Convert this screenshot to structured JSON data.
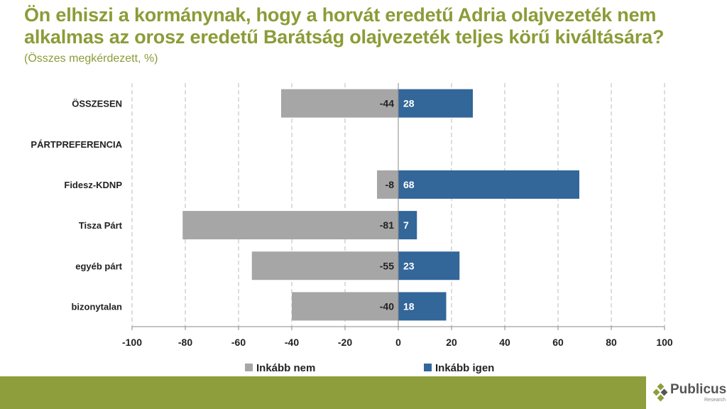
{
  "title": "Ön elhiszi a kormánynak, hogy a horvát eredetű Adria olajvezeték nem alkalmas az orosz eredetű Barátság olajvezeték teljes körű kiváltására?",
  "subtitle": "(Összes megkérdezett, %)",
  "logo": {
    "name": "Publicus",
    "sub": "Research"
  },
  "colors": {
    "nem": "#a6a6a6",
    "igen": "#336699",
    "accent": "#8e9e3c"
  },
  "chart_data": {
    "type": "bar",
    "orientation": "horizontal-diverging",
    "categories": [
      "ÖSSZESEN",
      "PÁRTPREFERENCIA",
      "Fidesz-KDNP",
      "Tisza Párt",
      "egyéb párt",
      "bizonytalan"
    ],
    "series": [
      {
        "name": "Inkább nem",
        "values": [
          -44,
          null,
          -8,
          -81,
          -55,
          -40
        ]
      },
      {
        "name": "Inkább igen",
        "values": [
          28,
          null,
          68,
          7,
          23,
          18
        ]
      }
    ],
    "xlim": [
      -100,
      100
    ],
    "xticks": [
      -100,
      -80,
      -60,
      -40,
      -20,
      0,
      20,
      40,
      60,
      80,
      100
    ],
    "grid": true,
    "legend": "bottom"
  }
}
